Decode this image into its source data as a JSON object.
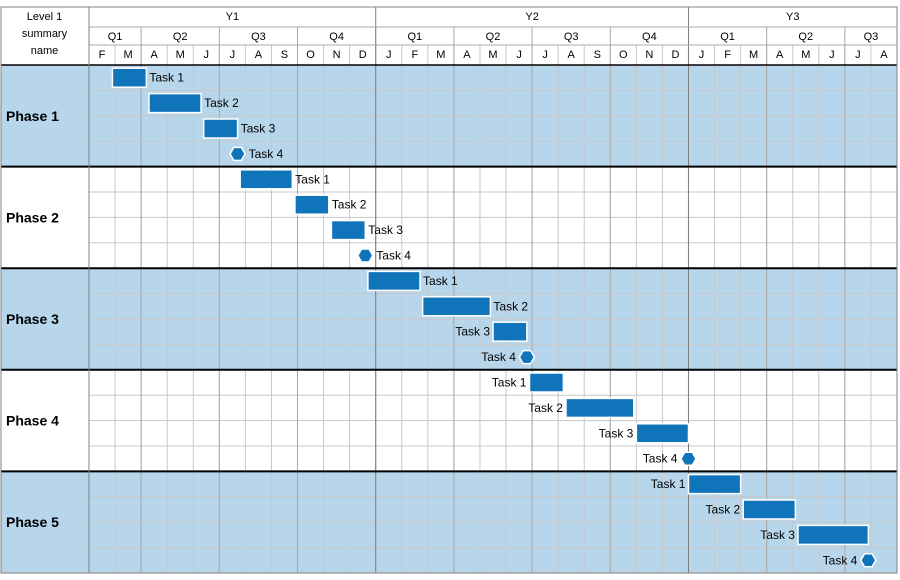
{
  "header_label": "Level 1\nsummary\nname",
  "chart_data": {
    "type": "gantt",
    "years": [
      {
        "label": "Y1",
        "start": "F",
        "months": 11
      },
      {
        "label": "Y2",
        "start": "J",
        "months": 12
      },
      {
        "label": "Y3",
        "start": "J",
        "months": 8
      }
    ],
    "quarters": [
      {
        "label": "Q1",
        "months": 2
      },
      {
        "label": "Q2",
        "months": 3
      },
      {
        "label": "Q3",
        "months": 3
      },
      {
        "label": "Q4",
        "months": 3
      },
      {
        "label": "Q1",
        "months": 3
      },
      {
        "label": "Q2",
        "months": 3
      },
      {
        "label": "Q3",
        "months": 3
      },
      {
        "label": "Q4",
        "months": 3
      },
      {
        "label": "Q1",
        "months": 3
      },
      {
        "label": "Q2",
        "months": 3
      },
      {
        "label": "Q3",
        "months": 2
      }
    ],
    "months": [
      "F",
      "M",
      "A",
      "M",
      "J",
      "J",
      "A",
      "S",
      "O",
      "N",
      "D",
      "J",
      "F",
      "M",
      "A",
      "M",
      "J",
      "J",
      "A",
      "S",
      "O",
      "N",
      "D",
      "J",
      "F",
      "M",
      "A",
      "M",
      "J",
      "J",
      "A"
    ],
    "phases": [
      {
        "name": "Phase 1",
        "shaded": true,
        "tasks": [
          {
            "label": "Task 1",
            "start": 0.9,
            "end": 2.2,
            "label_side": "right"
          },
          {
            "label": "Task 2",
            "start": 2.3,
            "end": 4.3,
            "label_side": "right"
          },
          {
            "label": "Task 3",
            "start": 4.4,
            "end": 5.7,
            "label_side": "right"
          },
          {
            "label": "Task 4",
            "milestone": 5.7,
            "label_side": "right"
          }
        ]
      },
      {
        "name": "Phase 2",
        "shaded": false,
        "tasks": [
          {
            "label": "Task 1",
            "start": 5.8,
            "end": 7.8,
            "label_side": "right"
          },
          {
            "label": "Task 2",
            "start": 7.9,
            "end": 9.2,
            "label_side": "right"
          },
          {
            "label": "Task 3",
            "start": 9.3,
            "end": 10.6,
            "label_side": "right"
          },
          {
            "label": "Task 4",
            "milestone": 10.6,
            "label_side": "right"
          }
        ]
      },
      {
        "name": "Phase 3",
        "shaded": true,
        "tasks": [
          {
            "label": "Task 1",
            "start": 10.7,
            "end": 12.7,
            "label_side": "right"
          },
          {
            "label": "Task 2",
            "start": 12.8,
            "end": 15.4,
            "label_side": "right"
          },
          {
            "label": "Task 3",
            "start": 15.5,
            "end": 16.8,
            "label_side": "left"
          },
          {
            "label": "Task 4",
            "milestone": 16.8,
            "label_side": "left"
          }
        ]
      },
      {
        "name": "Phase 4",
        "shaded": false,
        "tasks": [
          {
            "label": "Task 1",
            "start": 16.9,
            "end": 18.2,
            "label_side": "left"
          },
          {
            "label": "Task 2",
            "start": 18.3,
            "end": 20.9,
            "label_side": "left"
          },
          {
            "label": "Task 3",
            "start": 21.0,
            "end": 23.0,
            "label_side": "left"
          },
          {
            "label": "Task 4",
            "milestone": 23.0,
            "label_side": "left"
          }
        ]
      },
      {
        "name": "Phase 5",
        "shaded": true,
        "tasks": [
          {
            "label": "Task 1",
            "start": 23.0,
            "end": 25.0,
            "label_side": "left"
          },
          {
            "label": "Task 2",
            "start": 25.1,
            "end": 27.1,
            "label_side": "left"
          },
          {
            "label": "Task 3",
            "start": 27.2,
            "end": 29.9,
            "label_side": "left"
          },
          {
            "label": "Task 4",
            "milestone": 29.9,
            "label_side": "left"
          }
        ]
      }
    ]
  },
  "colors": {
    "bar": "#0f74b9",
    "shade": "#b7d6ec",
    "grid": "#c8c8c8",
    "divider": "#000000"
  }
}
